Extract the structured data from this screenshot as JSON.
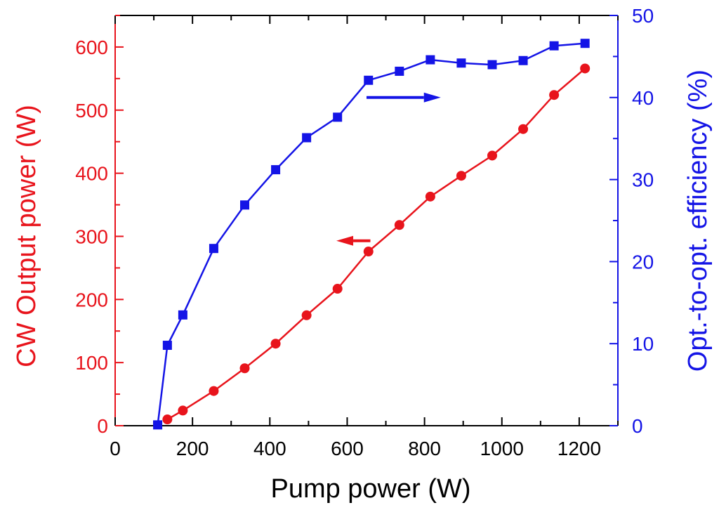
{
  "chart_data": {
    "type": "line",
    "title": "",
    "xlabel": "Pump power (W)",
    "ylabel_left": "CW Output power (W)",
    "ylabel_right": "Opt.-to-opt. efficiency (%)",
    "xlim": [
      0,
      1300
    ],
    "ylim_left": [
      0,
      650
    ],
    "ylim_right": [
      0,
      50
    ],
    "x_ticks": [
      0,
      200,
      400,
      600,
      800,
      1000,
      1200
    ],
    "y_left_ticks": [
      0,
      100,
      200,
      300,
      400,
      500,
      600
    ],
    "y_right_ticks": [
      0,
      10,
      20,
      30,
      40,
      50
    ],
    "grid": false,
    "series": [
      {
        "name": "CW Output power",
        "axis": "left",
        "marker": "circle",
        "color": "#e8141c",
        "x": [
          135,
          175,
          255,
          335,
          415,
          495,
          575,
          655,
          735,
          815,
          895,
          975,
          1055,
          1135,
          1215
        ],
        "values": [
          10,
          24,
          55,
          91,
          130,
          175,
          217,
          276,
          318,
          363,
          396,
          428,
          470,
          524,
          566
        ]
      },
      {
        "name": "Opt.-to-opt. efficiency",
        "axis": "right",
        "marker": "square",
        "color": "#1414e6",
        "x": [
          110,
          135,
          175,
          255,
          335,
          415,
          495,
          575,
          655,
          735,
          815,
          895,
          975,
          1055,
          1135,
          1215
        ],
        "values": [
          0.1,
          9.8,
          13.5,
          21.6,
          26.9,
          31.2,
          35.1,
          37.6,
          42.1,
          43.2,
          44.6,
          44.2,
          44.0,
          44.5,
          46.3,
          46.6
        ]
      }
    ],
    "annotations": [
      {
        "type": "arrow",
        "direction": "left",
        "series": "CW Output power",
        "color": "#e8141c",
        "tail": [
          660,
          293
        ],
        "head": [
          572,
          293
        ]
      },
      {
        "type": "arrow",
        "direction": "right",
        "series": "Opt.-to-opt. efficiency",
        "color": "#1414e6",
        "tail": [
          650,
          40
        ],
        "head": [
          842,
          40
        ]
      }
    ]
  }
}
